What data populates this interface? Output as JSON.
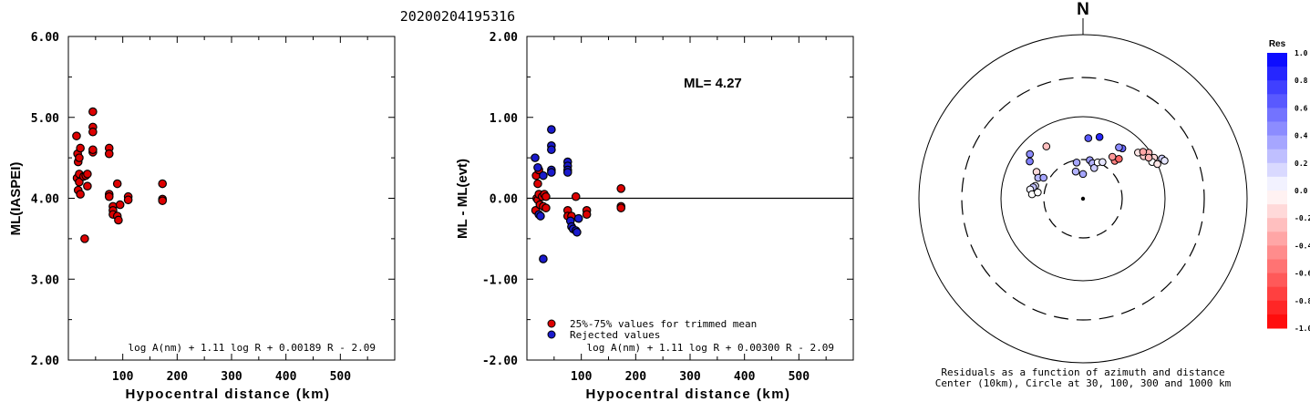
{
  "title": "20200204195316",
  "chart_data": [
    {
      "type": "scatter",
      "xlabel": "Hypocentral distance (km)",
      "ylabel": "ML(IASPEI)",
      "xlim": [
        0,
        600
      ],
      "ylim": [
        2.0,
        6.0
      ],
      "xticks": [
        "100",
        "200",
        "300",
        "400",
        "500"
      ],
      "yticks": [
        "2.00",
        "3.00",
        "4.00",
        "5.00",
        "6.00"
      ],
      "formula": "log A(nm) + 1.11 log R + 0.00189 R - 2.09",
      "marker_color": "#dd0000",
      "points": [
        [
          15,
          4.77
        ],
        [
          17,
          4.55
        ],
        [
          18,
          4.45
        ],
        [
          20,
          4.5
        ],
        [
          22,
          4.62
        ],
        [
          16,
          4.25
        ],
        [
          20,
          4.3
        ],
        [
          18,
          4.1
        ],
        [
          22,
          4.05
        ],
        [
          20,
          4.2
        ],
        [
          28,
          4.27
        ],
        [
          32,
          4.28
        ],
        [
          35,
          4.3
        ],
        [
          30,
          3.5
        ],
        [
          35,
          4.15
        ],
        [
          45,
          5.07
        ],
        [
          45,
          4.88
        ],
        [
          45,
          4.82
        ],
        [
          45,
          4.57
        ],
        [
          45,
          4.6
        ],
        [
          75,
          4.62
        ],
        [
          75,
          4.55
        ],
        [
          75,
          4.05
        ],
        [
          75,
          4.02
        ],
        [
          82,
          3.9
        ],
        [
          82,
          3.85
        ],
        [
          82,
          3.8
        ],
        [
          90,
          4.18
        ],
        [
          90,
          3.78
        ],
        [
          92,
          3.73
        ],
        [
          95,
          3.92
        ],
        [
          110,
          4.02
        ],
        [
          110,
          3.98
        ],
        [
          173,
          4.18
        ],
        [
          173,
          3.99
        ],
        [
          173,
          3.97
        ]
      ]
    },
    {
      "type": "scatter",
      "xlabel": "Hypocentral distance (km)",
      "ylabel": "ML - ML(evt)",
      "xlim": [
        0,
        600
      ],
      "ylim": [
        -2.0,
        2.0
      ],
      "xticks": [
        "100",
        "200",
        "300",
        "400",
        "500"
      ],
      "yticks": [
        "-2.00",
        "-1.00",
        "0.00",
        "1.00",
        "2.00"
      ],
      "annotation": "ML= 4.27",
      "zero_line": true,
      "formula": "log A(nm) + 1.11 log R + 0.00300 R - 2.09",
      "legend": [
        {
          "label": "25%-75% values for trimmed mean",
          "color": "#dd0000"
        },
        {
          "label": "Rejected values",
          "color": "#1a1acc"
        }
      ],
      "series": [
        {
          "name": "25%-75% values for trimmed mean",
          "color": "#dd0000",
          "points": [
            [
              17,
              0.28
            ],
            [
              20,
              0.18
            ],
            [
              22,
              0.35
            ],
            [
              18,
              0.0
            ],
            [
              16,
              -0.15
            ],
            [
              20,
              -0.02
            ],
            [
              22,
              0.05
            ],
            [
              28,
              0.02
            ],
            [
              32,
              0.05
            ],
            [
              35,
              0.02
            ],
            [
              24,
              -0.08
            ],
            [
              30,
              -0.1
            ],
            [
              35,
              -0.12
            ],
            [
              75,
              -0.15
            ],
            [
              75,
              -0.22
            ],
            [
              82,
              -0.22
            ],
            [
              90,
              0.02
            ],
            [
              110,
              -0.15
            ],
            [
              110,
              -0.2
            ],
            [
              173,
              0.12
            ],
            [
              173,
              -0.1
            ],
            [
              173,
              -0.12
            ]
          ]
        },
        {
          "name": "Rejected values",
          "color": "#1a1acc",
          "points": [
            [
              15,
              0.5
            ],
            [
              20,
              0.38
            ],
            [
              22,
              -0.2
            ],
            [
              25,
              -0.22
            ],
            [
              30,
              0.28
            ],
            [
              30,
              -0.75
            ],
            [
              45,
              0.85
            ],
            [
              45,
              0.65
            ],
            [
              45,
              0.6
            ],
            [
              45,
              0.35
            ],
            [
              45,
              0.32
            ],
            [
              75,
              0.45
            ],
            [
              75,
              0.4
            ],
            [
              75,
              0.35
            ],
            [
              75,
              0.32
            ],
            [
              80,
              -0.28
            ],
            [
              82,
              -0.35
            ],
            [
              85,
              -0.38
            ],
            [
              90,
              -0.4
            ],
            [
              92,
              -0.42
            ],
            [
              95,
              -0.25
            ]
          ]
        }
      ]
    },
    {
      "type": "scatter",
      "subtype": "polar",
      "north_label": "N",
      "caption_line1": "Residuals as a function of azimuth and distance",
      "caption_line2": "Center (10km), Circle at 30, 100, 300 and 1000 km",
      "colorbar_title": "Res",
      "colorbar_ticks": [
        "1.0",
        "0.8",
        "0.6",
        "0.4",
        "0.2",
        "0.0",
        "-0.2",
        "-0.4",
        "-0.6",
        "-0.8",
        "-1.0"
      ],
      "points": [
        {
          "azimuth": 300,
          "distance": 45,
          "res": -0.15
        },
        {
          "azimuth": 295,
          "distance": 40,
          "res": 0.28
        },
        {
          "azimuth": 298,
          "distance": 35,
          "res": 0.35
        },
        {
          "azimuth": 285,
          "distance": 40,
          "res": 0.1
        },
        {
          "azimuth": 283,
          "distance": 42,
          "res": 0.25
        },
        {
          "azimuth": 280,
          "distance": 45,
          "res": 0.05
        },
        {
          "azimuth": 275,
          "distance": 42,
          "res": 0.0
        },
        {
          "azimuth": 278,
          "distance": 36,
          "res": 0.0
        },
        {
          "azimuth": 325,
          "distance": 60,
          "res": -0.25
        },
        {
          "azimuth": 310,
          "distance": 70,
          "res": 0.45
        },
        {
          "azimuth": 305,
          "distance": 62,
          "res": 0.5
        },
        {
          "azimuth": 345,
          "distance": 22,
          "res": 0.3
        },
        {
          "azimuth": 350,
          "distance": 28,
          "res": 0.35
        },
        {
          "azimuth": 0,
          "distance": 20,
          "res": 0.35
        },
        {
          "azimuth": 10,
          "distance": 30,
          "res": 0.4
        },
        {
          "azimuth": 15,
          "distance": 28,
          "res": 0.3
        },
        {
          "azimuth": 20,
          "distance": 25,
          "res": 0.2
        },
        {
          "azimuth": 22,
          "distance": 30,
          "res": 0.0
        },
        {
          "azimuth": 28,
          "distance": 32,
          "res": 0.1
        },
        {
          "azimuth": 15,
          "distance": 60,
          "res": 0.85
        },
        {
          "azimuth": 5,
          "distance": 55,
          "res": 0.65
        },
        {
          "azimuth": 38,
          "distance": 60,
          "res": 0.6
        },
        {
          "azimuth": 35,
          "distance": 58,
          "res": 0.45
        },
        {
          "azimuth": 40,
          "distance": 40,
          "res": -0.5
        },
        {
          "azimuth": 42,
          "distance": 45,
          "res": -0.6
        },
        {
          "azimuth": 35,
          "distance": 42,
          "res": -0.4
        },
        {
          "azimuth": 50,
          "distance": 75,
          "res": -0.1
        },
        {
          "azimuth": 55,
          "distance": 80,
          "res": -0.2
        },
        {
          "azimuth": 55,
          "distance": 95,
          "res": -0.3
        },
        {
          "azimuth": 60,
          "distance": 100,
          "res": -0.15
        },
        {
          "azimuth": 62,
          "distance": 90,
          "res": 0.0
        },
        {
          "azimuth": 65,
          "distance": 100,
          "res": -0.1
        },
        {
          "azimuth": 63,
          "distance": 120,
          "res": 0.2
        },
        {
          "azimuth": 65,
          "distance": 125,
          "res": 0.1
        },
        {
          "azimuth": 58,
          "distance": 88,
          "res": -0.3
        },
        {
          "azimuth": 52,
          "distance": 85,
          "res": -0.35
        }
      ]
    }
  ]
}
